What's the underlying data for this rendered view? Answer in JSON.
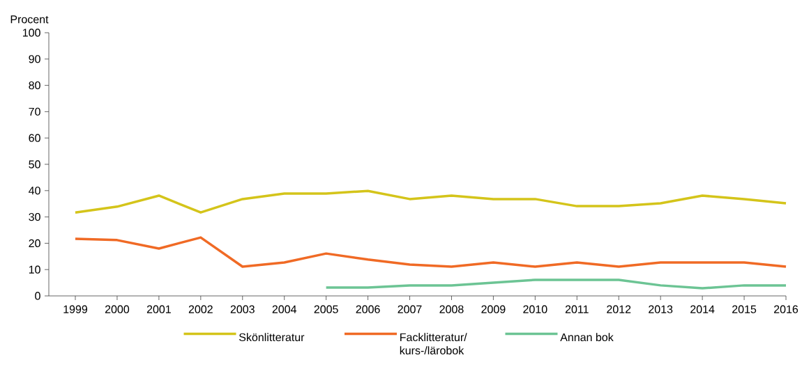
{
  "chart_data": {
    "type": "line",
    "ylabel": "Procent",
    "categories": [
      "1999",
      "2000",
      "2001",
      "2002",
      "2003",
      "2004",
      "2005",
      "2006",
      "2007",
      "2008",
      "2009",
      "2010",
      "2011",
      "2012",
      "2013",
      "2014",
      "2015",
      "2016"
    ],
    "series": [
      {
        "name": "Skönlitteratur",
        "color": "#d4c41a",
        "values": [
          31.7,
          33.9,
          38.1,
          31.7,
          36.8,
          38.9,
          38.9,
          39.9,
          36.8,
          38.1,
          36.8,
          36.8,
          34.1,
          34.1,
          35.2,
          38.1,
          36.8,
          35.2
        ]
      },
      {
        "name": "Facklitteratur/ kurs-/lärobok",
        "color": "#f06a25",
        "values": [
          21.7,
          21.2,
          18.0,
          22.2,
          11.1,
          12.7,
          16.1,
          13.8,
          11.9,
          11.1,
          12.7,
          11.1,
          12.7,
          11.1,
          12.7,
          12.7,
          12.7,
          11.1
        ]
      },
      {
        "name": "Annan bok",
        "color": "#6cc494",
        "values": [
          null,
          null,
          null,
          null,
          null,
          null,
          3.2,
          3.2,
          4.0,
          4.0,
          5.0,
          6.1,
          6.1,
          6.1,
          4.0,
          2.9,
          4.0,
          4.0
        ]
      }
    ],
    "ylim": [
      0,
      100
    ],
    "yticks": [
      0,
      10,
      20,
      30,
      40,
      50,
      60,
      70,
      80,
      90,
      100
    ],
    "grid": false,
    "legend": "bottom",
    "marker": "none",
    "line_style": "solid"
  }
}
